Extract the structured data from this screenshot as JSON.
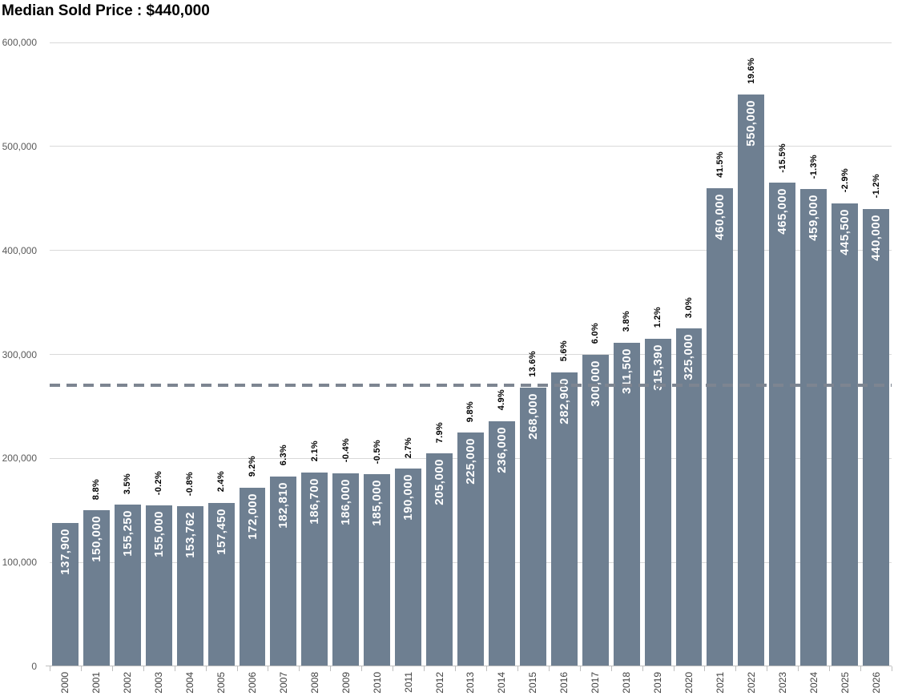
{
  "title": "Median Sold Price : $440,000",
  "chart_data": {
    "type": "bar",
    "title": "Median Sold Price : $440,000",
    "xlabel": "",
    "ylabel": "",
    "ylim": [
      0,
      600000
    ],
    "grid": true,
    "legend_position": "none",
    "categories": [
      "2000",
      "2001",
      "2002",
      "2003",
      "2004",
      "2005",
      "2006",
      "2007",
      "2008",
      "2009",
      "2010",
      "2011",
      "2012",
      "2013",
      "2014",
      "2015",
      "2016",
      "2017",
      "2018",
      "2019",
      "2020",
      "2021",
      "2022",
      "2023",
      "2024",
      "2025",
      "2026"
    ],
    "values": [
      137900,
      150000,
      155250,
      155000,
      153762,
      157450,
      172000,
      182810,
      186700,
      186000,
      185000,
      190000,
      205000,
      225000,
      236000,
      268000,
      282900,
      300000,
      311500,
      315390,
      325000,
      460000,
      550000,
      465000,
      459000,
      445500,
      440000
    ],
    "bar_labels": [
      "137,900",
      "150,000",
      "155,250",
      "155,000",
      "153,762",
      "157,450",
      "172,000",
      "182,810",
      "186,700",
      "186,000",
      "185,000",
      "190,000",
      "205,000",
      "225,000",
      "236,000",
      "268,000",
      "282,900",
      "300,000",
      "311,500",
      "315,390",
      "325,000",
      "460,000",
      "550,000",
      "465,000",
      "459,000",
      "445,500",
      "440,000"
    ],
    "pct_change_labels": [
      "",
      "8.8%",
      "3.5%",
      "-0.2%",
      "-0.8%",
      "2.4%",
      "9.2%",
      "6.3%",
      "2.1%",
      "-0.4%",
      "-0.5%",
      "2.7%",
      "7.9%",
      "9.8%",
      "4.9%",
      "13.6%",
      "5.6%",
      "6.0%",
      "3.8%",
      "1.2%",
      "3.0%",
      "41.5%",
      "19.6%",
      "-15.5%",
      "-1.3%",
      "-2.9%",
      "-1.2%"
    ],
    "y_ticks": [
      {
        "label": "600,000",
        "value": 600000
      },
      {
        "label": "500,000",
        "value": 500000
      },
      {
        "label": "400,000",
        "value": 400000
      },
      {
        "label": "300,000",
        "value": 300000
      },
      {
        "label": "200,000",
        "value": 200000
      },
      {
        "label": "100,000",
        "value": 100000
      },
      {
        "label": "0",
        "value": 0
      }
    ],
    "reference_line": {
      "value": 270000,
      "style": "dashed"
    },
    "colors": {
      "bar": "#6e7f91",
      "bar_label_text": "#ffffff",
      "pct_label_text": "#000000",
      "axis_tick_label": "#595959",
      "x_axis_label": "#404040",
      "gridline": "#d9d9d9",
      "axis_line": "#bfbfbf",
      "reference_line": "#7d8591",
      "title_text": "#000000"
    }
  }
}
